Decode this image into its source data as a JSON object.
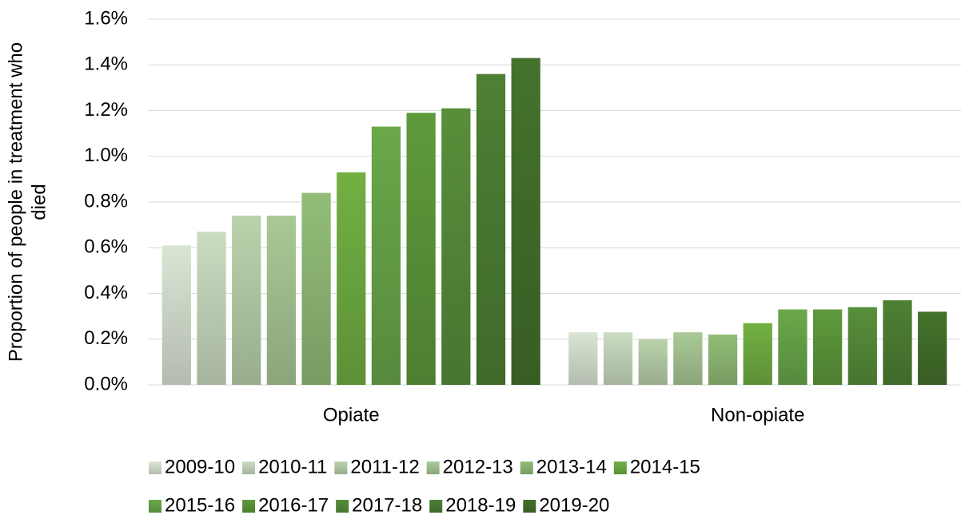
{
  "chart_data": {
    "type": "bar",
    "y_label": "Proportion of people in treatment who died",
    "categories": [
      "Opiate",
      "Non-opiate"
    ],
    "series": [
      {
        "name": "2009-10",
        "color": "#dae5d4",
        "values": [
          0.61,
          0.23
        ]
      },
      {
        "name": "2010-11",
        "color": "#cbdcc1",
        "values": [
          0.67,
          0.23
        ]
      },
      {
        "name": "2011-12",
        "color": "#bad3ac",
        "values": [
          0.74,
          0.2
        ]
      },
      {
        "name": "2012-13",
        "color": "#a9c996",
        "values": [
          0.74,
          0.23
        ]
      },
      {
        "name": "2013-14",
        "color": "#92bd78",
        "values": [
          0.84,
          0.22
        ]
      },
      {
        "name": "2014-15",
        "color": "#72b043",
        "values": [
          0.93,
          0.27
        ]
      },
      {
        "name": "2015-16",
        "color": "#6aa84a",
        "values": [
          1.13,
          0.33
        ]
      },
      {
        "name": "2016-17",
        "color": "#5e9a3c",
        "values": [
          1.19,
          0.33
        ]
      },
      {
        "name": "2017-18",
        "color": "#588f3a",
        "values": [
          1.21,
          0.34
        ]
      },
      {
        "name": "2018-19",
        "color": "#4e8034",
        "values": [
          1.36,
          0.37
        ]
      },
      {
        "name": "2019-20",
        "color": "#44722c",
        "values": [
          1.43,
          0.32
        ]
      }
    ],
    "ylim": [
      0,
      1.6
    ],
    "yticks": [
      {
        "value": 0,
        "label": "0.0%"
      },
      {
        "value": 0.2,
        "label": "0.2%"
      },
      {
        "value": 0.4,
        "label": "0.4%"
      },
      {
        "value": 0.6,
        "label": "0.6%"
      },
      {
        "value": 0.8,
        "label": "0.8%"
      },
      {
        "value": 1.0,
        "label": "1.0%"
      },
      {
        "value": 1.2,
        "label": "1.2%"
      },
      {
        "value": 1.4,
        "label": "1.4%"
      },
      {
        "value": 1.6,
        "label": "1.6%"
      }
    ],
    "grid": true,
    "legend": "bottom"
  }
}
